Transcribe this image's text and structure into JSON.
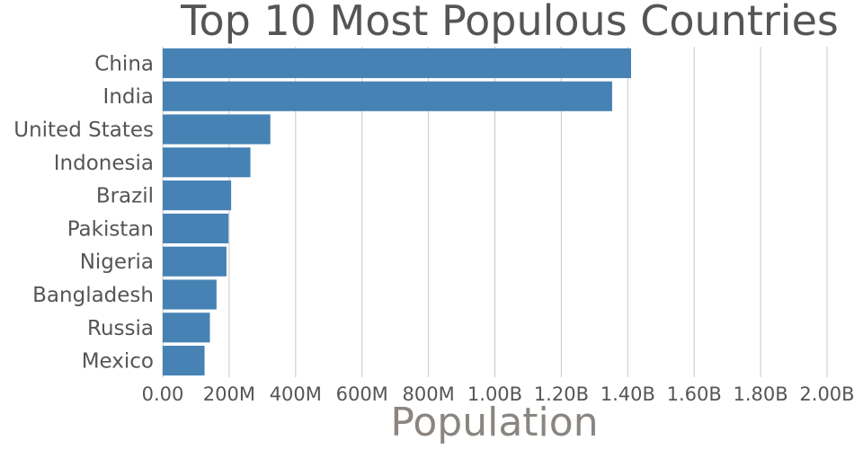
{
  "chart_data": {
    "type": "bar",
    "orientation": "horizontal",
    "title": "Top 10 Most Populous Countries",
    "xlabel": "Population",
    "ylabel": "",
    "categories": [
      "China",
      "India",
      "United States",
      "Indonesia",
      "Brazil",
      "Pakistan",
      "Nigeria",
      "Bangladesh",
      "Russia",
      "Mexico"
    ],
    "values": [
      1410000000,
      1353000000,
      324000000,
      264000000,
      206000000,
      198000000,
      192000000,
      162000000,
      142000000,
      126000000
    ],
    "xlim": [
      0,
      2000000000
    ],
    "xticks": [
      "0.00",
      "200M",
      "400M",
      "600M",
      "800M",
      "1.00B",
      "1.20B",
      "1.40B",
      "1.60B",
      "1.80B",
      "2.00B"
    ],
    "grid": "vertical",
    "legend": "none",
    "bar_color": "#4682b4"
  }
}
